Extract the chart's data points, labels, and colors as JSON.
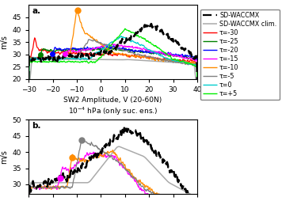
{
  "title_a": "SW2 Amplitude, V (20-60N)",
  "title_a2": "$10^{-4}$ hPa (only suc. ens.)",
  "ylabel": "m/s",
  "xlim": [
    -30,
    40
  ],
  "ylim_a": [
    20,
    50
  ],
  "ylim_b": [
    27,
    50
  ],
  "xticks": [
    -30,
    -20,
    -10,
    0,
    10,
    20,
    30,
    40
  ],
  "yticks_a": [
    20,
    25,
    30,
    35,
    40,
    45
  ],
  "yticks_b": [
    30,
    35,
    40,
    45,
    50
  ],
  "colors": {
    "SD-WACCMX": "#000000",
    "SD-WACCMX clim.": "#aaaaaa",
    "tau_m30": "#ff0000",
    "tau_m25": "#008000",
    "tau_m20": "#0000ff",
    "tau_m15": "#ff00ff",
    "tau_m10": "#ff8c00",
    "tau_m5": "#808080",
    "tau_0": "#00cccc",
    "tau_p5": "#00ee00"
  },
  "legend_labels": [
    "SD-WACCMX",
    "SD-WACCMX clim.",
    "τ=-30",
    "τ=-25",
    "τ=-20",
    "τ=-15",
    "τ=-10",
    "τ=-5",
    "τ=0",
    "τ=+5"
  ],
  "panel_a_label": "a.",
  "panel_b_label": "b."
}
